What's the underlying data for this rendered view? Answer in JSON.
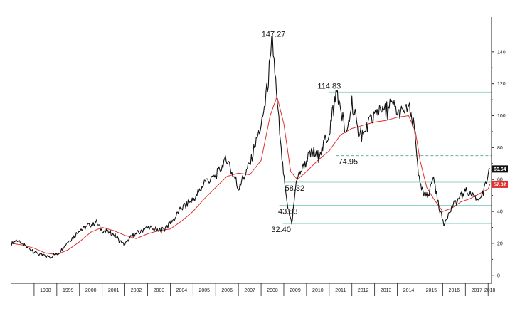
{
  "chart_data": {
    "type": "line",
    "title": "",
    "xlabel": "",
    "ylabel": "",
    "x_range": [
      1997.0,
      2018.15
    ],
    "ylim": [
      -5,
      160
    ],
    "y_ticks": [
      0,
      20,
      40,
      60,
      80,
      100,
      120,
      140
    ],
    "y_tick_labels": [
      "0",
      "20",
      "40",
      "60",
      "80",
      "100",
      "120",
      "140"
    ],
    "x_year_labels": [
      "1998",
      "1999",
      "2000",
      "2001",
      "2002",
      "2003",
      "2004",
      "2005",
      "2006",
      "2007",
      "2008",
      "2009",
      "2010",
      "2011",
      "2012",
      "2013",
      "2014",
      "2015",
      "2016",
      "2017",
      "2018"
    ],
    "colors": {
      "price": "#111111",
      "moving_average": "#e03030",
      "level_line": "#8fd3c4",
      "dashed_level": "#4aa592",
      "last_price_badge": "#111111",
      "ma_badge": "#e03030"
    },
    "series": [
      {
        "name": "price",
        "x": [
          1997.0,
          1997.25,
          1997.5,
          1997.75,
          1998.0,
          1998.25,
          1998.5,
          1998.75,
          1999.0,
          1999.25,
          1999.5,
          1999.75,
          2000.0,
          2000.25,
          2000.5,
          2000.75,
          2001.0,
          2001.25,
          2001.5,
          2001.75,
          2002.0,
          2002.25,
          2002.5,
          2002.75,
          2003.0,
          2003.25,
          2003.5,
          2003.75,
          2004.0,
          2004.25,
          2004.5,
          2004.75,
          2005.0,
          2005.25,
          2005.5,
          2005.75,
          2006.0,
          2006.25,
          2006.5,
          2006.75,
          2007.0,
          2007.25,
          2007.5,
          2007.75,
          2008.0,
          2008.25,
          2008.5,
          2008.75,
          2008.95,
          2009.15,
          2009.35,
          2009.55,
          2009.75,
          2010.0,
          2010.25,
          2010.5,
          2010.75,
          2011.0,
          2011.33,
          2011.6,
          2011.75,
          2012.0,
          2012.25,
          2012.5,
          2012.75,
          2013.0,
          2013.25,
          2013.5,
          2013.75,
          2014.0,
          2014.25,
          2014.5,
          2014.75,
          2015.0,
          2015.2,
          2015.4,
          2015.6,
          2015.8,
          2016.05,
          2016.25,
          2016.5,
          2016.75,
          2017.0,
          2017.25,
          2017.5,
          2017.75,
          2018.0,
          2018.08
        ],
        "values": [
          20,
          22,
          19,
          17,
          15,
          13,
          12,
          12,
          13,
          17,
          21,
          24,
          28,
          30,
          32,
          33,
          28,
          27,
          26,
          22,
          19,
          24,
          26,
          28,
          30,
          29,
          28,
          29,
          33,
          37,
          42,
          45,
          47,
          52,
          58,
          60,
          62,
          68,
          72,
          64,
          55,
          62,
          70,
          83,
          92,
          115,
          147.27,
          100,
          68,
          43.83,
          32.4,
          58.32,
          66,
          72,
          78,
          74,
          82,
          90,
          114.83,
          98,
          85,
          108,
          92,
          88,
          96,
          100,
          104,
          102,
          108,
          100,
          103,
          105,
          92,
          55,
          50,
          52,
          62,
          45,
          32,
          38,
          45,
          48,
          53,
          51,
          48,
          50,
          62,
          66.64
        ]
      },
      {
        "name": "moving_average",
        "x": [
          1997.0,
          1997.5,
          1998.0,
          1998.5,
          1999.0,
          1999.5,
          2000.0,
          2000.5,
          2001.0,
          2001.5,
          2002.0,
          2002.5,
          2003.0,
          2003.5,
          2004.0,
          2004.5,
          2005.0,
          2005.5,
          2006.0,
          2006.5,
          2007.0,
          2007.5,
          2008.0,
          2008.4,
          2008.7,
          2009.0,
          2009.3,
          2009.6,
          2010.0,
          2010.5,
          2011.0,
          2011.5,
          2012.0,
          2012.5,
          2013.0,
          2013.5,
          2014.0,
          2014.5,
          2014.8,
          2015.0,
          2015.3,
          2015.6,
          2016.0,
          2016.4,
          2016.8,
          2017.2,
          2017.6,
          2018.0,
          2018.08
        ],
        "values": [
          20,
          19,
          17,
          14,
          13,
          16,
          21,
          27,
          30,
          28,
          25,
          23,
          26,
          28,
          29,
          34,
          40,
          48,
          55,
          62,
          64,
          63,
          72,
          100,
          112,
          95,
          65,
          60,
          65,
          72,
          78,
          88,
          92,
          94,
          96,
          97,
          99,
          100,
          90,
          72,
          55,
          48,
          40,
          42,
          46,
          48,
          51,
          54,
          57.02
        ]
      }
    ],
    "reference_lines": [
      {
        "value": 114.83,
        "style": "solid",
        "x_start": 2011.0
      },
      {
        "value": 74.95,
        "style": "dashed",
        "x_start": 2011.3
      },
      {
        "value": 58.32,
        "style": "solid",
        "x_start": 2009.0
      },
      {
        "value": 43.83,
        "style": "solid",
        "x_start": 2008.8
      },
      {
        "value": 32.4,
        "style": "solid",
        "x_start": 2008.95
      }
    ],
    "annotations": [
      {
        "text": "147.27",
        "x": 2008.55,
        "y": 147.27,
        "anchor": "above"
      },
      {
        "text": "114.83",
        "x": 2011.0,
        "y": 114.83,
        "anchor": "above"
      },
      {
        "text": "74.95",
        "x": 2011.4,
        "y": 74.95,
        "anchor": "below"
      },
      {
        "text": "58.32",
        "x": 2009.05,
        "y": 58.32,
        "anchor": "below"
      },
      {
        "text": "43.83",
        "x": 2008.75,
        "y": 43.83,
        "anchor": "below"
      },
      {
        "text": "32.40",
        "x": 2008.45,
        "y": 32.4,
        "anchor": "below"
      }
    ],
    "last_values": [
      {
        "name": "last-price",
        "text": "66.64",
        "value": 66.64
      },
      {
        "name": "moving-average",
        "text": "57.02",
        "value": 57.02
      }
    ]
  }
}
